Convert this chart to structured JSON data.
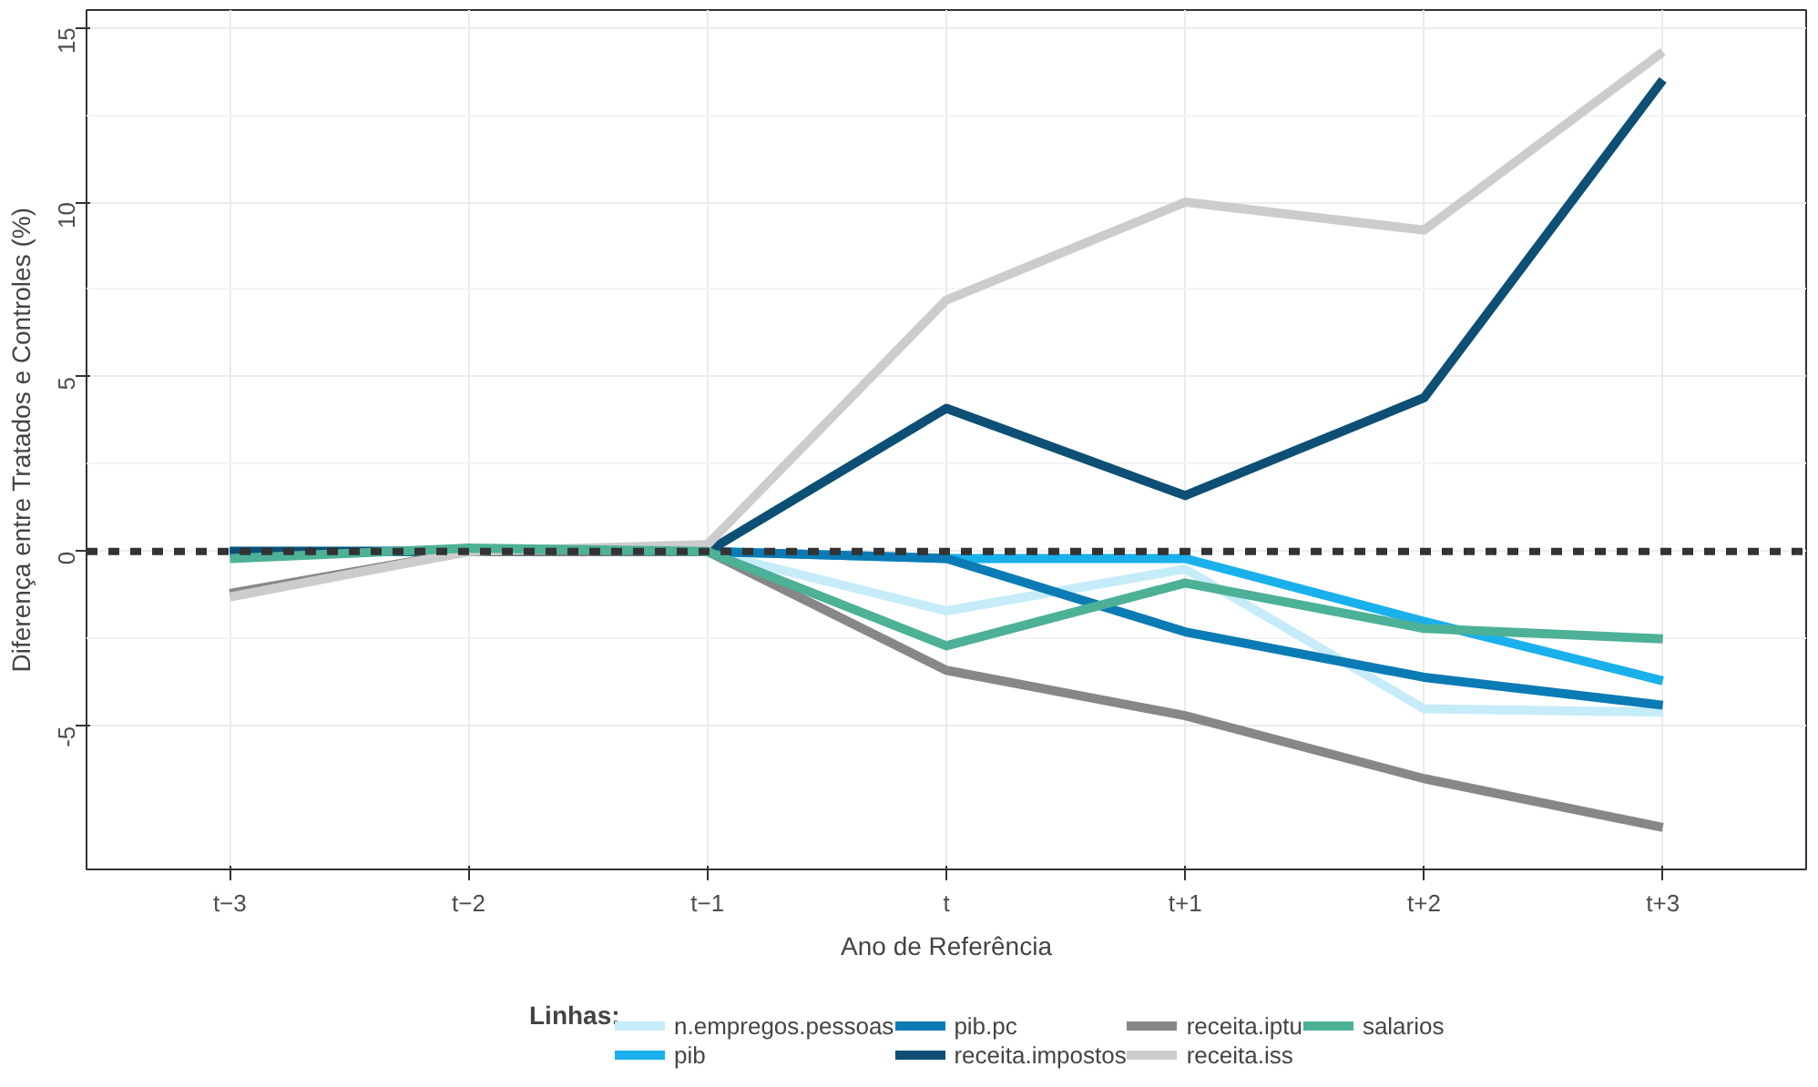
{
  "chart_data": {
    "type": "line",
    "xlabel": "Ano de Referência",
    "ylabel": "Diferença entre Tratados e Controles (%)",
    "legend_title": "Linhas:",
    "categories": [
      "t−3",
      "t−2",
      "t−1",
      "t",
      "t+1",
      "t+2",
      "t+3"
    ],
    "series": [
      {
        "name": "n.empregos.pessoas",
        "color": "#c6ecfa",
        "values": [
          0,
          0,
          0,
          -1.7,
          -0.5,
          -4.5,
          -4.6
        ]
      },
      {
        "name": "pib",
        "color": "#1ab0ec",
        "values": [
          0,
          0,
          0,
          -0.2,
          -0.2,
          -2.0,
          -3.7
        ]
      },
      {
        "name": "pib.pc",
        "color": "#0b7bb5",
        "values": [
          0,
          0,
          0,
          -0.2,
          -2.3,
          -3.6,
          -4.4
        ]
      },
      {
        "name": "receita.impostos",
        "color": "#0d4f75",
        "values": [
          0,
          0,
          0,
          4.1,
          1.6,
          4.4,
          13.5
        ]
      },
      {
        "name": "receita.iptu",
        "color": "#878787",
        "values": [
          -1.2,
          0,
          0,
          -3.4,
          -4.7,
          -6.5,
          -7.9
        ]
      },
      {
        "name": "receita.iss",
        "color": "#cccccc",
        "values": [
          -1.3,
          0,
          0.2,
          7.2,
          10.0,
          9.2,
          14.3
        ]
      },
      {
        "name": "salarios",
        "color": "#4cb197",
        "values": [
          -0.2,
          0.1,
          0,
          -2.7,
          -0.9,
          -2.2,
          -2.5
        ]
      }
    ],
    "ylim": [
      -9.1,
      15.5
    ],
    "yticks": [
      -5,
      0,
      5,
      10,
      15
    ],
    "grid": true,
    "legend": "bottom",
    "line_style": "solid",
    "ref_lines": [
      {
        "axis": "y",
        "value": 0,
        "label": null,
        "color": "#333333",
        "line_style": "dashed"
      }
    ]
  }
}
